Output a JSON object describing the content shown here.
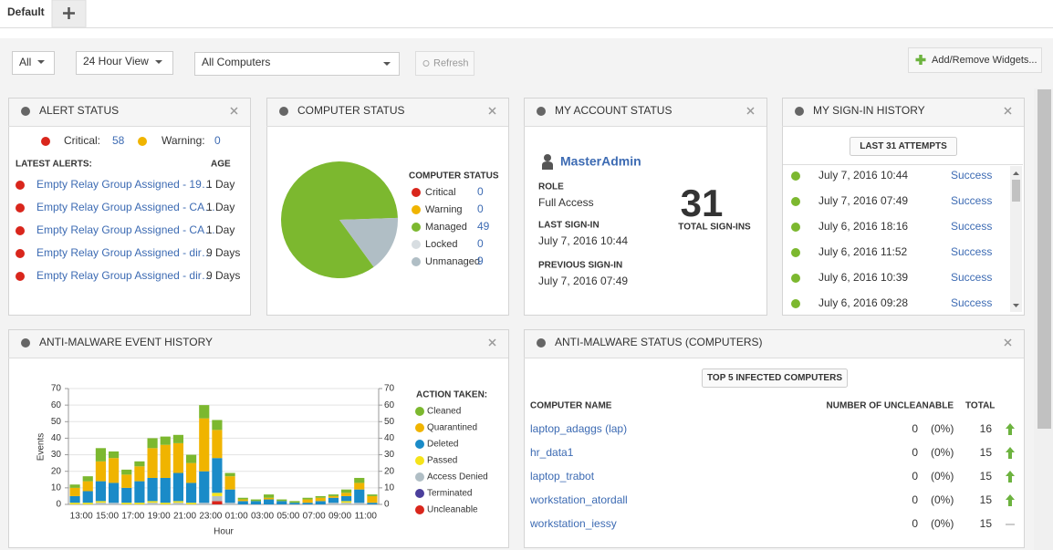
{
  "tabs": {
    "active": "Default"
  },
  "toolbar": {
    "filter": "All",
    "view": "24 Hour View",
    "computers": "All Computers",
    "refresh": "Refresh",
    "add_remove": "Add/Remove Widgets..."
  },
  "alert_status": {
    "title": "ALERT STATUS",
    "critical_label": "Critical:",
    "critical": 58,
    "warning_label": "Warning:",
    "warning": 0,
    "latest_header": "LATEST ALERTS:",
    "age_header": "AGE",
    "alerts": [
      {
        "text": "Empty Relay Group Assigned - 19…",
        "age": "1 Day"
      },
      {
        "text": "Empty Relay Group Assigned - CA…",
        "age": "1 Day"
      },
      {
        "text": "Empty Relay Group Assigned - CA…",
        "age": "1 Day"
      },
      {
        "text": "Empty Relay Group Assigned - dir…",
        "age": "9 Days"
      },
      {
        "text": "Empty Relay Group Assigned - dir…",
        "age": "9 Days"
      }
    ]
  },
  "computer_status": {
    "title": "COMPUTER STATUS"
  },
  "account_status": {
    "title": "MY ACCOUNT STATUS",
    "user": "MasterAdmin",
    "role_label": "ROLE",
    "role": "Full Access",
    "last_label": "LAST SIGN-IN",
    "last": "July 7, 2016 10:44",
    "previous_label": "PREVIOUS SIGN-IN",
    "previous": "July 7, 2016 07:49",
    "total": 31,
    "total_label": "TOTAL SIGN-INS"
  },
  "signin_history": {
    "title": "MY SIGN-IN HISTORY",
    "button": "LAST 31 ATTEMPTS",
    "rows": [
      {
        "date": "July 7, 2016 10:44",
        "result": "Success"
      },
      {
        "date": "July 7, 2016 07:49",
        "result": "Success"
      },
      {
        "date": "July 6, 2016 18:16",
        "result": "Success"
      },
      {
        "date": "July 6, 2016 11:52",
        "result": "Success"
      },
      {
        "date": "July 6, 2016 10:39",
        "result": "Success"
      },
      {
        "date": "July 6, 2016 09:28",
        "result": "Success"
      }
    ]
  },
  "event_history": {
    "title": "ANTI-MALWARE EVENT HISTORY"
  },
  "malware_status": {
    "title": "ANTI-MALWARE STATUS (COMPUTERS)",
    "button": "TOP 5 INFECTED COMPUTERS",
    "headers": [
      "COMPUTER NAME",
      "NUMBER OF UNCLEANABLE",
      "TOTAL"
    ],
    "rows": [
      {
        "name": "laptop_adaggs (lap)",
        "uncleanable": 0,
        "percent": "(0%)",
        "total": 16,
        "trend": "up"
      },
      {
        "name": "hr_data1",
        "uncleanable": 0,
        "percent": "(0%)",
        "total": 15,
        "trend": "up"
      },
      {
        "name": "laptop_trabot",
        "uncleanable": 0,
        "percent": "(0%)",
        "total": 15,
        "trend": "up"
      },
      {
        "name": "workstation_atordall",
        "uncleanable": 0,
        "percent": "(0%)",
        "total": 15,
        "trend": "up"
      },
      {
        "name": "workstation_iessy",
        "uncleanable": 0,
        "percent": "(0%)",
        "total": 15,
        "trend": "flat"
      }
    ]
  },
  "chart_data": [
    {
      "type": "pie",
      "title": "COMPUTER STATUS",
      "categories": [
        "Critical",
        "Warning",
        "Managed",
        "Locked",
        "Unmanaged"
      ],
      "values": [
        0,
        0,
        49,
        0,
        9
      ],
      "colors": [
        "#d9261c",
        "#f0b400",
        "#7cb82f",
        "#d7dde1",
        "#b0bec5"
      ]
    },
    {
      "type": "bar",
      "stacked": true,
      "legend_title": "ACTION TAKEN:",
      "xlabel": "Hour",
      "ylabel": "Events",
      "categories": [
        null,
        "13:00",
        null,
        "15:00",
        null,
        "17:00",
        null,
        "19:00",
        null,
        "21:00",
        null,
        "23:00",
        null,
        "01:00",
        null,
        "03:00",
        null,
        "05:00",
        null,
        "07:00",
        null,
        "09:00",
        null,
        "11:00"
      ],
      "ylim": [
        0,
        70
      ],
      "yticks": [
        0,
        10,
        20,
        30,
        40,
        50,
        60,
        70
      ],
      "y2lim": [
        0,
        70
      ],
      "y2ticks": [
        0,
        10,
        20,
        30,
        40,
        50,
        60,
        70
      ],
      "grid": true,
      "series": [
        {
          "name": "Cleaned",
          "color": "#7cb82f",
          "values": [
            2,
            3,
            8,
            4,
            3,
            3,
            6,
            5,
            5,
            5,
            8,
            6,
            2,
            1,
            1,
            2,
            1,
            1,
            1,
            1,
            1,
            2,
            3,
            1
          ]
        },
        {
          "name": "Quarantined",
          "color": "#f0b400",
          "values": [
            5,
            6,
            12,
            15,
            8,
            9,
            18,
            20,
            18,
            12,
            32,
            17,
            8,
            1,
            0,
            1,
            0,
            0,
            2,
            2,
            1,
            2,
            4,
            4
          ]
        },
        {
          "name": "Deleted",
          "color": "#1a8bc8",
          "values": [
            4,
            7,
            12,
            12,
            9,
            13,
            14,
            15,
            17,
            12,
            19,
            21,
            8,
            2,
            2,
            3,
            2,
            1,
            1,
            2,
            3,
            3,
            8,
            1
          ]
        },
        {
          "name": "Passed",
          "color": "#f5e31a",
          "values": [
            1,
            1,
            1,
            0,
            1,
            1,
            1,
            1,
            1,
            1,
            0,
            2,
            0,
            0,
            0,
            0,
            0,
            0,
            0,
            0,
            0,
            1,
            0,
            0
          ]
        },
        {
          "name": "Access Denied",
          "color": "#b0bec5",
          "values": [
            0,
            0,
            1,
            1,
            0,
            0,
            1,
            0,
            1,
            0,
            1,
            3,
            1,
            0,
            0,
            0,
            0,
            0,
            0,
            0,
            1,
            1,
            1,
            0
          ]
        },
        {
          "name": "Terminated",
          "color": "#4b3f9c",
          "values": [
            0,
            0,
            0,
            0,
            0,
            0,
            0,
            0,
            0,
            0,
            0,
            0,
            0,
            0,
            0,
            0,
            0,
            0,
            0,
            0,
            0,
            0,
            0,
            0
          ]
        },
        {
          "name": "Uncleanable",
          "color": "#d9261c",
          "values": [
            0,
            0,
            0,
            0,
            0,
            0,
            0,
            0,
            0,
            0,
            0,
            2,
            0,
            0,
            0,
            0,
            0,
            0,
            0,
            0,
            0,
            0,
            0,
            0
          ]
        }
      ]
    }
  ]
}
